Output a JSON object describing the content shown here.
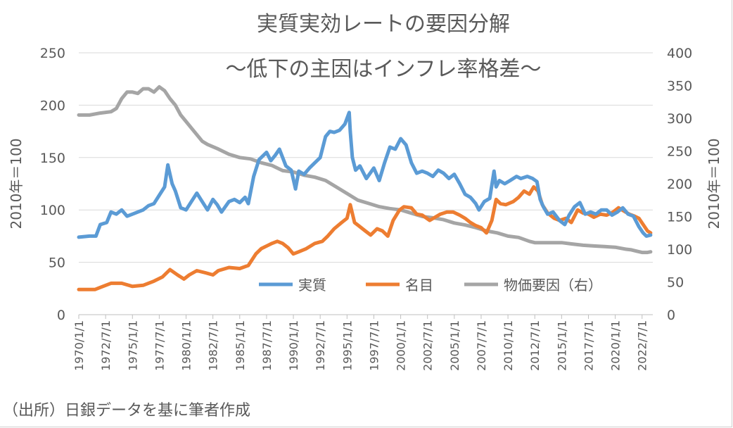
{
  "chart_data": {
    "type": "line",
    "title": "実質実効レートの要因分解",
    "subtitle": "～低下の主因はインフレ率格差～",
    "ylabel_left": "2010年＝100",
    "ylabel_right": "2010年＝100",
    "ylim_left": [
      0,
      250
    ],
    "ylim_right": [
      0,
      400
    ],
    "yticks_left": [
      "0",
      "50",
      "100",
      "150",
      "200",
      "250"
    ],
    "yticks_right": [
      "0",
      "50",
      "100",
      "150",
      "200",
      "250",
      "300",
      "350",
      "400"
    ],
    "x_range": [
      1970.0,
      2023.5
    ],
    "x_tick_labels": [
      "1970/1/1",
      "1972/7/1",
      "1975/1/1",
      "1977/7/1",
      "1980/1/1",
      "1982/7/1",
      "1985/1/1",
      "1987/7/1",
      "1990/1/1",
      "1992/7/1",
      "1995/1/1",
      "1997/7/1",
      "2000/1/1",
      "2002/7/1",
      "2005/1/1",
      "2007/7/1",
      "2010/1/1",
      "2012/7/1",
      "2015/1/1",
      "2017/7/1",
      "2020/1/1",
      "2022/7/1"
    ],
    "legend_position": "bottom-right",
    "source": "（出所）日銀データを基に筆者作成",
    "series": [
      {
        "name": "実質",
        "axis": "left",
        "color": "#5b9bd5",
        "x": [
          1970.0,
          1971.0,
          1971.6,
          1972.0,
          1972.6,
          1973.0,
          1973.5,
          1974.0,
          1974.5,
          1975.0,
          1976.0,
          1976.5,
          1977.0,
          1977.5,
          1978.0,
          1978.3,
          1978.7,
          1979.0,
          1979.5,
          1980.0,
          1980.5,
          1981.0,
          1981.5,
          1982.0,
          1982.5,
          1982.9,
          1983.3,
          1984.0,
          1984.5,
          1985.0,
          1985.5,
          1985.8,
          1986.3,
          1986.8,
          1987.5,
          1987.9,
          1988.3,
          1988.7,
          1989.0,
          1989.3,
          1989.8,
          1990.2,
          1990.5,
          1991.0,
          1991.5,
          1992.0,
          1992.5,
          1993.0,
          1993.4,
          1993.8,
          1994.3,
          1994.8,
          1995.2,
          1995.3,
          1995.5,
          1995.8,
          1996.2,
          1996.8,
          1997.5,
          1998.0,
          1998.5,
          1999.0,
          1999.5,
          2000.0,
          2000.5,
          2001.0,
          2001.5,
          2002.0,
          2002.5,
          2003.0,
          2003.5,
          2004.0,
          2004.5,
          2005.0,
          2005.5,
          2006.0,
          2006.5,
          2007.0,
          2007.3,
          2007.8,
          2008.3,
          2008.7,
          2008.9,
          2009.2,
          2009.7,
          2010.2,
          2010.8,
          2011.2,
          2011.8,
          2012.3,
          2012.7,
          2013.0,
          2013.3,
          2013.7,
          2014.2,
          2014.8,
          2015.3,
          2015.7,
          2016.2,
          2016.7,
          2017.2,
          2017.7,
          2018.2,
          2018.7,
          2019.2,
          2019.7,
          2020.2,
          2020.7,
          2021.2,
          2021.7,
          2022.2,
          2022.6,
          2022.9,
          2023.3
        ],
        "values": [
          74,
          75,
          75,
          86,
          88,
          98,
          96,
          100,
          94,
          96,
          100,
          104,
          106,
          114,
          122,
          143,
          125,
          118,
          102,
          100,
          108,
          116,
          108,
          100,
          110,
          105,
          98,
          108,
          110,
          107,
          112,
          106,
          132,
          148,
          155,
          147,
          152,
          158,
          150,
          142,
          138,
          120,
          137,
          134,
          140,
          145,
          150,
          170,
          175,
          174,
          176,
          182,
          193,
          175,
          150,
          138,
          142,
          130,
          140,
          128,
          145,
          160,
          158,
          168,
          162,
          145,
          135,
          137,
          135,
          132,
          138,
          135,
          130,
          134,
          125,
          115,
          112,
          106,
          100,
          108,
          111,
          137,
          122,
          128,
          125,
          128,
          132,
          130,
          132,
          130,
          127,
          110,
          103,
          96,
          98,
          90,
          86,
          95,
          103,
          107,
          96,
          98,
          96,
          100,
          100,
          95,
          98,
          102,
          96,
          94,
          84,
          78,
          75,
          76
        ]
      },
      {
        "name": "名目",
        "axis": "left",
        "color": "#ed7d31",
        "x": [
          1970.0,
          1971.5,
          1972.0,
          1973.0,
          1974.0,
          1975.0,
          1976.0,
          1977.0,
          1977.8,
          1978.5,
          1979.2,
          1979.8,
          1980.3,
          1981.0,
          1981.8,
          1982.5,
          1983.0,
          1984.0,
          1985.0,
          1985.8,
          1986.5,
          1987.0,
          1988.0,
          1988.5,
          1989.0,
          1989.5,
          1990.0,
          1990.5,
          1991.2,
          1992.0,
          1992.7,
          1993.2,
          1993.8,
          1994.5,
          1995.0,
          1995.3,
          1995.7,
          1996.2,
          1996.7,
          1997.2,
          1997.8,
          1998.3,
          1998.8,
          1999.3,
          1999.9,
          2000.3,
          2001.0,
          2001.5,
          2002.0,
          2002.7,
          2003.2,
          2003.7,
          2004.3,
          2004.9,
          2005.5,
          2006.0,
          2006.5,
          2007.0,
          2007.5,
          2008.0,
          2008.5,
          2008.9,
          2009.3,
          2009.8,
          2010.5,
          2011.0,
          2011.5,
          2012.0,
          2012.4,
          2012.8,
          2013.2,
          2013.7,
          2014.3,
          2014.8,
          2015.4,
          2015.9,
          2016.5,
          2017.0,
          2017.5,
          2018.0,
          2018.6,
          2019.2,
          2019.8,
          2020.3,
          2020.8,
          2021.3,
          2021.8,
          2022.2,
          2022.6,
          2023.0,
          2023.3
        ],
        "values": [
          24,
          24,
          26,
          30,
          30,
          27,
          28,
          32,
          36,
          43,
          38,
          34,
          38,
          42,
          40,
          38,
          42,
          45,
          44,
          47,
          58,
          63,
          68,
          70,
          68,
          64,
          58,
          60,
          63,
          68,
          70,
          75,
          82,
          88,
          92,
          105,
          88,
          84,
          80,
          76,
          82,
          80,
          75,
          90,
          100,
          103,
          102,
          96,
          95,
          90,
          93,
          96,
          98,
          98,
          95,
          92,
          88,
          85,
          83,
          78,
          90,
          110,
          106,
          105,
          108,
          112,
          118,
          115,
          122,
          118,
          105,
          97,
          92,
          90,
          92,
          88,
          100,
          97,
          96,
          93,
          96,
          95,
          98,
          102,
          99,
          96,
          94,
          92,
          86,
          80,
          78
        ]
      },
      {
        "name": "物価要因（右）",
        "axis": "right",
        "color": "#a5a5a5",
        "x": [
          1970.0,
          1971.0,
          1972.0,
          1973.0,
          1973.5,
          1974.0,
          1974.5,
          1975.0,
          1975.5,
          1976.0,
          1976.5,
          1977.0,
          1977.5,
          1978.0,
          1978.5,
          1979.0,
          1979.5,
          1980.0,
          1980.5,
          1981.0,
          1981.5,
          1982.0,
          1983.0,
          1984.0,
          1985.0,
          1986.0,
          1987.0,
          1988.0,
          1989.0,
          1990.0,
          1991.0,
          1992.0,
          1993.0,
          1994.0,
          1995.0,
          1996.0,
          1997.0,
          1998.0,
          1999.0,
          2000.0,
          2001.0,
          2002.0,
          2003.0,
          2004.0,
          2005.0,
          2006.0,
          2007.0,
          2008.0,
          2009.0,
          2010.0,
          2011.0,
          2012.0,
          2012.5,
          2013.0,
          2014.0,
          2015.0,
          2016.0,
          2017.0,
          2018.0,
          2019.0,
          2020.0,
          2021.0,
          2021.5,
          2022.0,
          2022.5,
          2023.0,
          2023.3
        ],
        "values": [
          305,
          305,
          308,
          310,
          315,
          330,
          340,
          340,
          338,
          345,
          345,
          340,
          348,
          342,
          330,
          320,
          305,
          295,
          285,
          275,
          265,
          260,
          253,
          245,
          240,
          238,
          232,
          228,
          220,
          218,
          213,
          210,
          205,
          195,
          185,
          175,
          170,
          165,
          162,
          160,
          155,
          150,
          148,
          145,
          140,
          137,
          133,
          128,
          125,
          120,
          118,
          112,
          110,
          110,
          110,
          110,
          108,
          106,
          105,
          104,
          103,
          100,
          99,
          97,
          95,
          95,
          96
        ]
      }
    ]
  }
}
